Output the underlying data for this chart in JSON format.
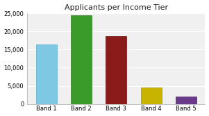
{
  "title": "Applicants per Income Tier",
  "categories": [
    "Band 1",
    "Band 2",
    "Band 3",
    "Band 4",
    "Band 5"
  ],
  "values": [
    16500,
    24500,
    18700,
    4500,
    2100
  ],
  "bar_colors": [
    "#7EC8E3",
    "#3A9A2A",
    "#8B1A1A",
    "#C8B400",
    "#6A3A8A"
  ],
  "bar_edge_colors": [
    "#5AACC8",
    "#2A7A1A",
    "#6B0A0A",
    "#A89400",
    "#4A1A6A"
  ],
  "ylim": [
    0,
    25000
  ],
  "yticks": [
    0,
    5000,
    10000,
    15000,
    20000,
    25000
  ],
  "plot_bg_color": "#F0F0F0",
  "fig_bg_color": "#FFFFFF",
  "grid_color": "#FFFFFF",
  "title_fontsize": 8,
  "tick_fontsize": 6,
  "spine_color": "#AAAAAA"
}
